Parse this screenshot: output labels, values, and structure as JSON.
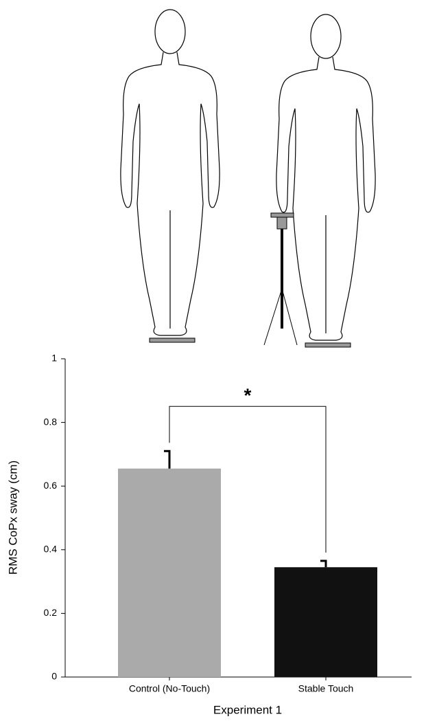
{
  "chart_data": {
    "type": "bar",
    "ylabel": "RMS CoPx sway (cm)",
    "xlabel": "Experiment 1",
    "categories": [
      "Control (No-Touch)",
      "Stable Touch"
    ],
    "values": [
      0.655,
      0.345
    ],
    "errors": [
      0.055,
      0.02
    ],
    "colors": [
      "#aaaaaa",
      "#111111"
    ],
    "ylim": [
      0,
      1
    ],
    "yticks": [
      0,
      0.2,
      0.4,
      0.6,
      0.8,
      1
    ],
    "annotation": "*"
  }
}
